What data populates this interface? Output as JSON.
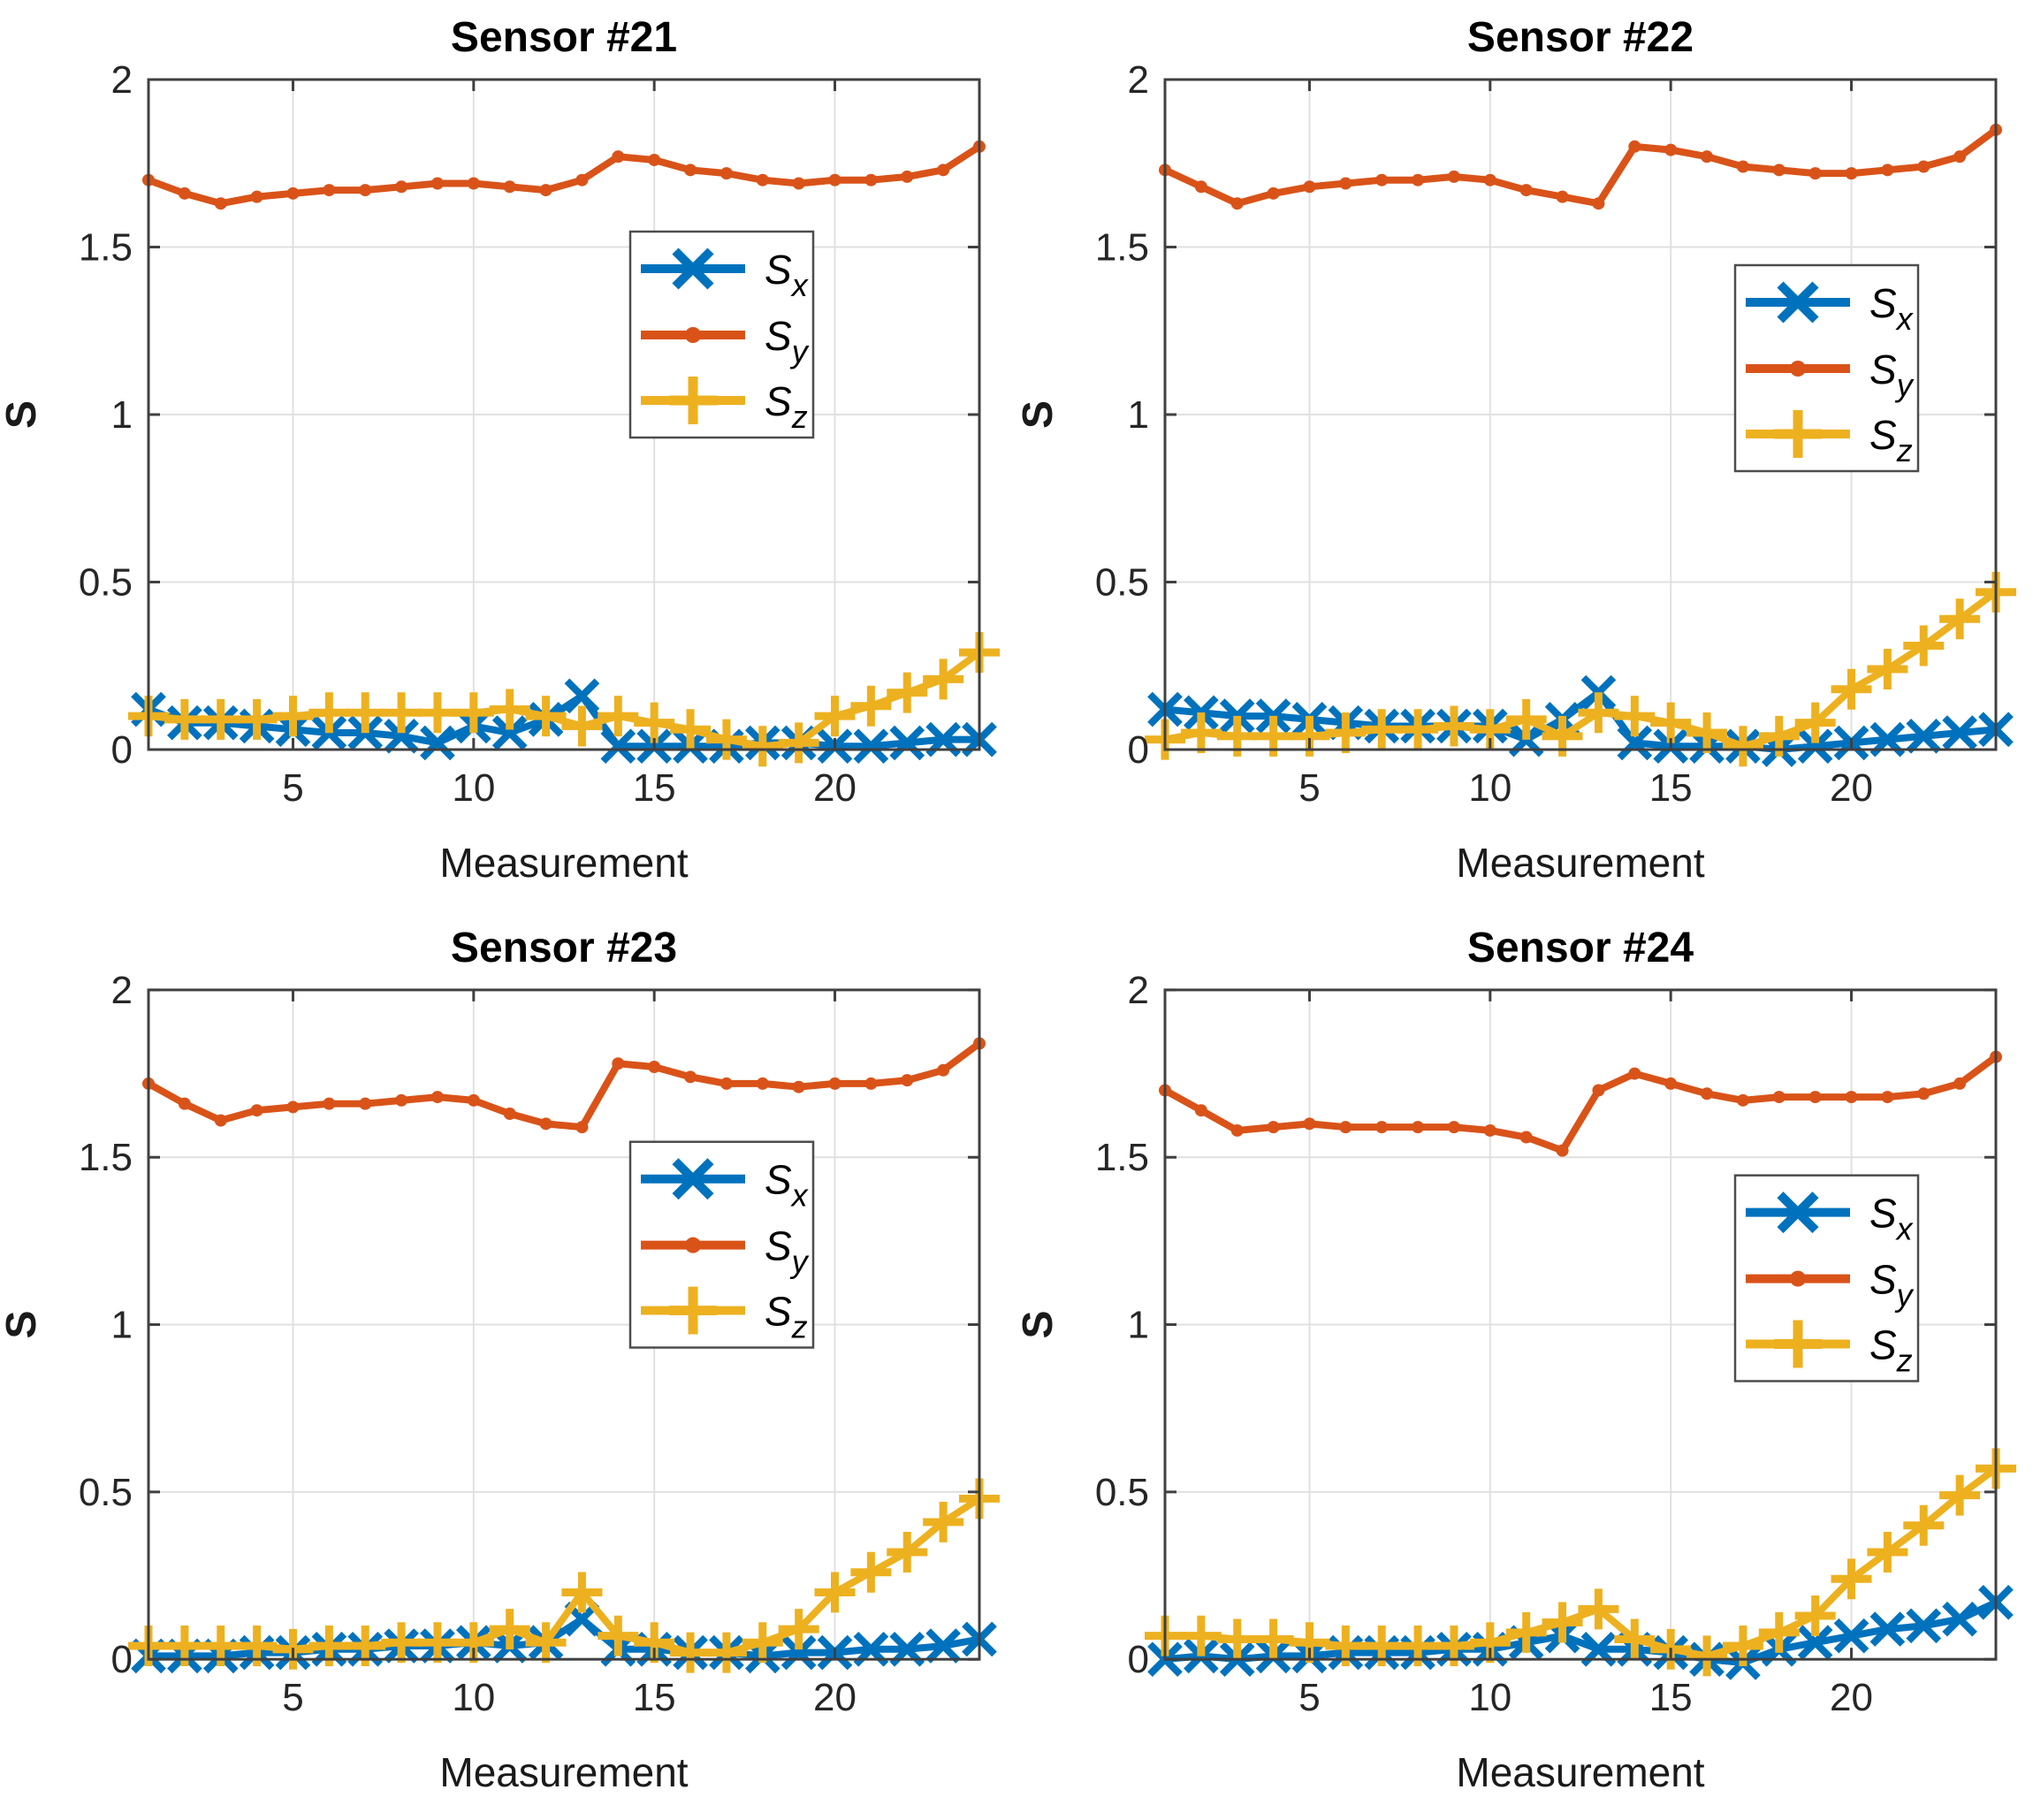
{
  "figure": {
    "background": "#ffffff",
    "description_texts": {
      "xlabel": "Measurement",
      "ylabel": "S"
    }
  },
  "colors": {
    "sx": "#0072BD",
    "sy": "#D95319",
    "sz": "#EDB120",
    "grid": "#e0e0e0",
    "axis_box": "#404040",
    "tick_text": "#262626",
    "label_text": "#1a1a1a",
    "title_text": "#000000",
    "legend_border": "#4d4d4d",
    "legend_bg": "#ffffff"
  },
  "measurements": [
    1,
    2,
    3,
    4,
    5,
    6,
    7,
    8,
    9,
    10,
    11,
    12,
    13,
    14,
    15,
    16,
    17,
    18,
    19,
    20,
    21,
    22,
    23,
    24
  ],
  "chart_data": [
    {
      "type": "line",
      "title": "Sensor #21",
      "xlabel": "Measurement",
      "ylabel": "S",
      "xlim": [
        1,
        24
      ],
      "ylim": [
        0,
        2
      ],
      "xticks": [
        5,
        10,
        15,
        20
      ],
      "yticks": [
        0,
        0.5,
        1,
        1.5,
        2
      ],
      "grid": true,
      "legend_pos": "center-right",
      "series": [
        {
          "id": "sx",
          "label_base": "S",
          "label_sub": "x",
          "marker": "x",
          "color_key": "sx",
          "values": [
            0.12,
            0.08,
            0.08,
            0.07,
            0.06,
            0.05,
            0.05,
            0.04,
            0.02,
            0.07,
            0.05,
            0.09,
            0.16,
            0.01,
            0.01,
            0.01,
            0.01,
            0.02,
            0.02,
            0.01,
            0.01,
            0.02,
            0.03,
            0.03
          ]
        },
        {
          "id": "sy",
          "label_base": "S",
          "label_sub": "y",
          "marker": "dot",
          "color_key": "sy",
          "values": [
            1.7,
            1.66,
            1.63,
            1.65,
            1.66,
            1.67,
            1.67,
            1.68,
            1.69,
            1.69,
            1.68,
            1.67,
            1.7,
            1.77,
            1.76,
            1.73,
            1.72,
            1.7,
            1.69,
            1.7,
            1.7,
            1.71,
            1.73,
            1.8
          ]
        },
        {
          "id": "sz",
          "label_base": "S",
          "label_sub": "z",
          "marker": "plus",
          "color_key": "sz",
          "values": [
            0.1,
            0.09,
            0.09,
            0.09,
            0.1,
            0.11,
            0.11,
            0.11,
            0.11,
            0.11,
            0.12,
            0.1,
            0.07,
            0.1,
            0.08,
            0.06,
            0.03,
            0.01,
            0.02,
            0.1,
            0.13,
            0.17,
            0.21,
            0.29
          ]
        }
      ]
    },
    {
      "type": "line",
      "title": "Sensor #22",
      "xlabel": "Measurement",
      "ylabel": "S",
      "xlim": [
        1,
        24
      ],
      "ylim": [
        0,
        2
      ],
      "xticks": [
        5,
        10,
        15,
        20
      ],
      "yticks": [
        0,
        0.5,
        1,
        1.5,
        2
      ],
      "grid": true,
      "legend_pos": "right",
      "series": [
        {
          "id": "sx",
          "label_base": "S",
          "label_sub": "x",
          "marker": "x",
          "color_key": "sx",
          "values": [
            0.12,
            0.11,
            0.1,
            0.1,
            0.09,
            0.08,
            0.07,
            0.07,
            0.07,
            0.07,
            0.03,
            0.09,
            0.17,
            0.02,
            0.01,
            0.01,
            0.01,
            0.0,
            0.01,
            0.02,
            0.03,
            0.04,
            0.05,
            0.06
          ]
        },
        {
          "id": "sy",
          "label_base": "S",
          "label_sub": "y",
          "marker": "dot",
          "color_key": "sy",
          "values": [
            1.73,
            1.68,
            1.63,
            1.66,
            1.68,
            1.69,
            1.7,
            1.7,
            1.71,
            1.7,
            1.67,
            1.65,
            1.63,
            1.8,
            1.79,
            1.77,
            1.74,
            1.73,
            1.72,
            1.72,
            1.73,
            1.74,
            1.77,
            1.85
          ]
        },
        {
          "id": "sz",
          "label_base": "S",
          "label_sub": "z",
          "marker": "plus",
          "color_key": "sz",
          "values": [
            0.03,
            0.05,
            0.04,
            0.04,
            0.04,
            0.05,
            0.06,
            0.06,
            0.07,
            0.06,
            0.09,
            0.04,
            0.11,
            0.1,
            0.08,
            0.05,
            0.01,
            0.04,
            0.08,
            0.18,
            0.24,
            0.31,
            0.39,
            0.47
          ]
        }
      ]
    },
    {
      "type": "line",
      "title": "Sensor #23",
      "xlabel": "Measurement",
      "ylabel": "S",
      "xlim": [
        1,
        24
      ],
      "ylim": [
        0,
        2
      ],
      "xticks": [
        5,
        10,
        15,
        20
      ],
      "yticks": [
        0,
        0.5,
        1,
        1.5,
        2
      ],
      "grid": true,
      "legend_pos": "center-right",
      "series": [
        {
          "id": "sx",
          "label_base": "S",
          "label_sub": "x",
          "marker": "x",
          "color_key": "sx",
          "values": [
            0.01,
            0.01,
            0.01,
            0.02,
            0.02,
            0.03,
            0.03,
            0.04,
            0.04,
            0.05,
            0.04,
            0.05,
            0.12,
            0.03,
            0.03,
            0.02,
            0.02,
            0.01,
            0.02,
            0.02,
            0.03,
            0.03,
            0.04,
            0.06
          ]
        },
        {
          "id": "sy",
          "label_base": "S",
          "label_sub": "y",
          "marker": "dot",
          "color_key": "sy",
          "values": [
            1.72,
            1.66,
            1.61,
            1.64,
            1.65,
            1.66,
            1.66,
            1.67,
            1.68,
            1.67,
            1.63,
            1.6,
            1.59,
            1.78,
            1.77,
            1.74,
            1.72,
            1.72,
            1.71,
            1.72,
            1.72,
            1.73,
            1.76,
            1.84
          ]
        },
        {
          "id": "sz",
          "label_base": "S",
          "label_sub": "z",
          "marker": "plus",
          "color_key": "sz",
          "values": [
            0.04,
            0.04,
            0.04,
            0.04,
            0.03,
            0.04,
            0.04,
            0.05,
            0.05,
            0.05,
            0.09,
            0.05,
            0.2,
            0.07,
            0.05,
            0.02,
            0.02,
            0.05,
            0.09,
            0.2,
            0.26,
            0.32,
            0.41,
            0.48
          ]
        }
      ]
    },
    {
      "type": "line",
      "title": "Sensor #24",
      "xlabel": "Measurement",
      "ylabel": "S",
      "xlim": [
        1,
        24
      ],
      "ylim": [
        0,
        2
      ],
      "xticks": [
        5,
        10,
        15,
        20
      ],
      "yticks": [
        0,
        0.5,
        1,
        1.5,
        2
      ],
      "grid": true,
      "legend_pos": "right",
      "series": [
        {
          "id": "sx",
          "label_base": "S",
          "label_sub": "x",
          "marker": "x",
          "color_key": "sx",
          "values": [
            0.0,
            0.01,
            0.0,
            0.01,
            0.01,
            0.02,
            0.02,
            0.02,
            0.03,
            0.03,
            0.05,
            0.07,
            0.03,
            0.03,
            0.02,
            0.0,
            -0.01,
            0.03,
            0.05,
            0.07,
            0.09,
            0.1,
            0.12,
            0.17
          ]
        },
        {
          "id": "sy",
          "label_base": "S",
          "label_sub": "y",
          "marker": "dot",
          "color_key": "sy",
          "values": [
            1.7,
            1.64,
            1.58,
            1.59,
            1.6,
            1.59,
            1.59,
            1.59,
            1.59,
            1.58,
            1.56,
            1.52,
            1.7,
            1.75,
            1.72,
            1.69,
            1.67,
            1.68,
            1.68,
            1.68,
            1.68,
            1.69,
            1.72,
            1.8
          ]
        },
        {
          "id": "sz",
          "label_base": "S",
          "label_sub": "z",
          "marker": "plus",
          "color_key": "sz",
          "values": [
            0.07,
            0.07,
            0.06,
            0.06,
            0.05,
            0.04,
            0.04,
            0.04,
            0.04,
            0.05,
            0.08,
            0.11,
            0.15,
            0.06,
            0.03,
            0.01,
            0.04,
            0.08,
            0.13,
            0.24,
            0.32,
            0.4,
            0.49,
            0.57
          ]
        }
      ]
    }
  ]
}
